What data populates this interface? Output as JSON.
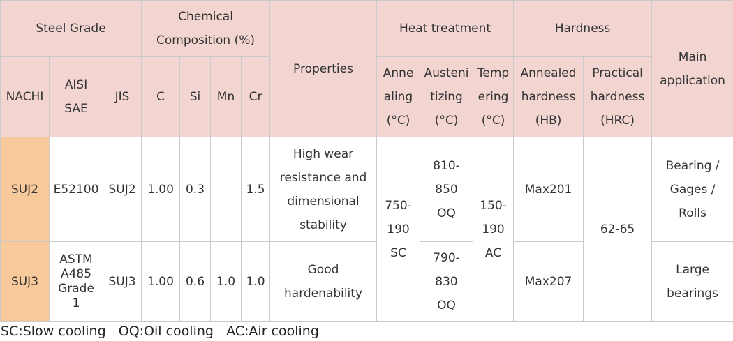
{
  "header": {
    "steel_grade": "Steel Grade",
    "chemical": "Chemical\nComposition (%)",
    "properties": "Properties",
    "heat_treatment": "Heat treatment",
    "hardness": "Hardness",
    "main_application": "Main\napplication",
    "nachi": "NACHI",
    "aisi_sae": "AISI\nSAE",
    "jis": "JIS",
    "c": "C",
    "si": "Si",
    "mn": "Mn",
    "cr": "Cr",
    "annealing": "Anne\naling\n(°C)",
    "austenitizing": "Austeni\ntizing\n(°C)",
    "tempering": "Temp\nering\n(°C)",
    "annealed_hardness": "Annealed\nhardness\n(HB)",
    "practical_hardness": "Practical\nhardness\n(HRC)"
  },
  "rows": [
    {
      "nachi": "SUJ2",
      "aisi": "E52100",
      "jis": "SUJ2",
      "c": "1.00",
      "si": "0.3",
      "mn": "",
      "cr": "1.5",
      "properties": "High wear\nresistance and\ndimensional\nstability",
      "austenitizing": "810-\n850\nOQ",
      "annealed_hardness": "Max201",
      "application": "Bearing /\nGages /\nRolls"
    },
    {
      "nachi": "SUJ3",
      "aisi": "ASTM\nA485\nGrade\n1",
      "jis": "SUJ3",
      "c": "1.00",
      "si": "0.6",
      "mn": "1.0",
      "cr": "1.0",
      "properties": "Good\nhardenability",
      "austenitizing": "790-\n830\nOQ",
      "annealed_hardness": "Max207",
      "application": "Large\nbearings"
    }
  ],
  "shared": {
    "annealing": "750-\n190\nSC",
    "tempering": "150-\n190\nAC",
    "practical_hardness": "62-65"
  },
  "footnote": "SC:Slow cooling   OQ:Oil cooling   AC:Air cooling"
}
